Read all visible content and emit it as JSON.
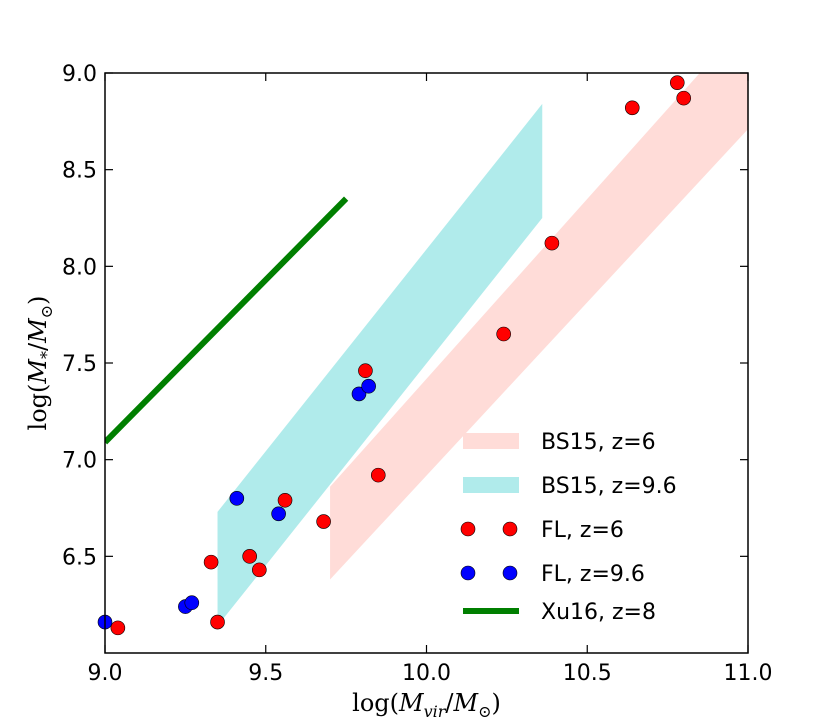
{
  "chart_data": {
    "type": "scatter",
    "title": "",
    "xlabel": "log(M_vir/M_⊙)",
    "ylabel": "log(M_*/M_⊙)",
    "xlabel_parts": {
      "pre": "log(",
      "main": "M",
      "sub": "vir",
      "mid": "/",
      "main2": "M",
      "sub2": "⊙",
      "post": ")"
    },
    "ylabel_parts": {
      "pre": "log(",
      "main": "M",
      "sub": "*",
      "mid": "/",
      "main2": "M",
      "sub2": "⊙",
      "post": ")"
    },
    "xlim": [
      9.0,
      11.0
    ],
    "ylim": [
      6.0,
      9.0
    ],
    "xticks": [
      9.0,
      9.5,
      10.0,
      10.5,
      11.0
    ],
    "xtick_labels": [
      "9.0",
      "9.5",
      "10.0",
      "10.5",
      "11.0"
    ],
    "yticks": [
      6.5,
      7.0,
      7.5,
      8.0,
      8.5,
      9.0
    ],
    "ytick_labels": [
      "6.5",
      "7.0",
      "7.5",
      "8.0",
      "8.5",
      "9.0"
    ],
    "grid": false,
    "legend_position": "lower-right",
    "series": [
      {
        "name": "BS15, z=6",
        "kind": "band",
        "color": "#ffdcd8",
        "polygon": [
          [
            9.7,
            6.38
          ],
          [
            11.0,
            8.71
          ],
          [
            11.0,
            9.0
          ],
          [
            10.85,
            9.0
          ],
          [
            9.7,
            6.86
          ]
        ]
      },
      {
        "name": "BS15, z=9.6",
        "kind": "band",
        "color": "#b0ebeb",
        "polygon": [
          [
            9.35,
            6.14
          ],
          [
            10.36,
            8.25
          ],
          [
            10.36,
            8.84
          ],
          [
            9.35,
            6.73
          ]
        ]
      },
      {
        "name": "FL, z=6",
        "kind": "points",
        "color": "#ff0000",
        "x": [
          9.04,
          9.33,
          9.35,
          9.45,
          9.48,
          9.56,
          9.68,
          9.81,
          9.85,
          10.24,
          10.39,
          10.64,
          10.78,
          10.8
        ],
        "y": [
          6.13,
          6.47,
          6.16,
          6.5,
          6.43,
          6.79,
          6.68,
          7.46,
          6.92,
          7.65,
          8.12,
          8.82,
          8.95,
          8.87
        ]
      },
      {
        "name": "FL, z=9.6",
        "kind": "points",
        "color": "#0000ff",
        "x": [
          9.0,
          9.25,
          9.27,
          9.41,
          9.54,
          9.79,
          9.82
        ],
        "y": [
          6.16,
          6.24,
          6.26,
          6.8,
          6.72,
          7.34,
          7.38
        ]
      },
      {
        "name": "Xu16, z=8",
        "kind": "line",
        "color": "#007f00",
        "x": [
          9.0,
          9.75
        ],
        "y": [
          7.09,
          8.35
        ]
      }
    ]
  }
}
